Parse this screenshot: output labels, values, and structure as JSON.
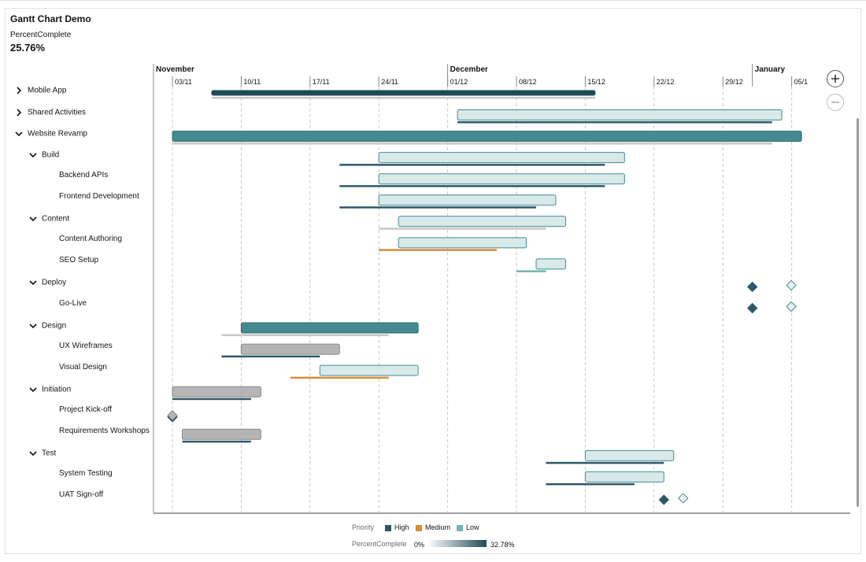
{
  "header": {
    "title": "Gantt Chart Demo",
    "kpi_label": "PercentComplete",
    "kpi_value": "25.76%"
  },
  "timeline": {
    "months": [
      "November",
      "December",
      "January"
    ],
    "weeks": [
      "03/11",
      "10/11",
      "17/11",
      "24/11",
      "01/12",
      "08/12",
      "15/12",
      "22/12",
      "29/12",
      "05/1"
    ]
  },
  "tree": [
    {
      "label": "Mobile App",
      "level": 0,
      "state": "collapsed"
    },
    {
      "label": "Shared Activities",
      "level": 0,
      "state": "collapsed"
    },
    {
      "label": "Website Revamp",
      "level": 0,
      "state": "expanded"
    },
    {
      "label": "Build",
      "level": 1,
      "state": "expanded"
    },
    {
      "label": "Backend APIs",
      "level": 2,
      "state": "leaf"
    },
    {
      "label": "Frontend Development",
      "level": 2,
      "state": "leaf"
    },
    {
      "label": "Content",
      "level": 1,
      "state": "expanded"
    },
    {
      "label": "Content Authoring",
      "level": 2,
      "state": "leaf"
    },
    {
      "label": "SEO Setup",
      "level": 2,
      "state": "leaf"
    },
    {
      "label": "Deploy",
      "level": 1,
      "state": "expanded"
    },
    {
      "label": "Go-Live",
      "level": 2,
      "state": "leaf"
    },
    {
      "label": "Design",
      "level": 1,
      "state": "expanded"
    },
    {
      "label": "UX Wireframes",
      "level": 2,
      "state": "leaf"
    },
    {
      "label": "Visual Design",
      "level": 2,
      "state": "leaf"
    },
    {
      "label": "Initiation",
      "level": 1,
      "state": "expanded"
    },
    {
      "label": "Project Kick-off",
      "level": 2,
      "state": "leaf"
    },
    {
      "label": "Requirements Workshops",
      "level": 2,
      "state": "leaf"
    },
    {
      "label": "Test",
      "level": 1,
      "state": "expanded"
    },
    {
      "label": "System Testing",
      "level": 2,
      "state": "leaf"
    },
    {
      "label": "UAT Sign-off",
      "level": 2,
      "state": "leaf"
    }
  ],
  "chart_data": {
    "type": "gantt",
    "x_axis": {
      "start": "2024-11-03",
      "tick_interval_days": 7,
      "tick_labels": [
        "03/11",
        "10/11",
        "17/11",
        "24/11",
        "01/12",
        "08/12",
        "15/12",
        "22/12",
        "29/12",
        "05/1"
      ]
    },
    "tasks": [
      {
        "name": "Mobile App",
        "kind": "summary",
        "start": "2024-11-07",
        "end": "2024-12-16",
        "baseline_start": "2024-11-07",
        "baseline_end": "2024-12-16",
        "baseline_priority": "none",
        "pct": 0.3278
      },
      {
        "name": "Shared Activities",
        "kind": "task",
        "start": "2024-12-02",
        "end": "2025-01-04",
        "baseline_start": "2024-12-02",
        "baseline_end": "2025-01-03",
        "baseline_priority": "High",
        "pct": 0.02
      },
      {
        "name": "Website Revamp",
        "kind": "summary",
        "start": "2024-11-03",
        "end": "2025-01-06",
        "baseline_start": "2024-11-03",
        "baseline_end": "2025-01-03",
        "baseline_priority": "none",
        "pct": 0.22
      },
      {
        "name": "Build",
        "kind": "task",
        "start": "2024-11-24",
        "end": "2024-12-19",
        "baseline_start": "2024-11-20",
        "baseline_end": "2024-12-17",
        "baseline_priority": "High",
        "pct": 0.02
      },
      {
        "name": "Backend APIs",
        "kind": "task",
        "start": "2024-11-24",
        "end": "2024-12-19",
        "baseline_start": "2024-11-20",
        "baseline_end": "2024-12-17",
        "baseline_priority": "High",
        "pct": 0.02
      },
      {
        "name": "Frontend Development",
        "kind": "task",
        "start": "2024-11-24",
        "end": "2024-12-12",
        "baseline_start": "2024-11-20",
        "baseline_end": "2024-12-10",
        "baseline_priority": "High",
        "pct": 0.02
      },
      {
        "name": "Content",
        "kind": "task",
        "start": "2024-11-26",
        "end": "2024-12-13",
        "baseline_start": "2024-11-24",
        "baseline_end": "2024-12-11",
        "baseline_priority": "none",
        "pct": 0.02
      },
      {
        "name": "Content Authoring",
        "kind": "task",
        "start": "2024-11-26",
        "end": "2024-12-09",
        "baseline_start": "2024-11-24",
        "baseline_end": "2024-12-06",
        "baseline_priority": "Medium",
        "pct": 0.02
      },
      {
        "name": "SEO Setup",
        "kind": "task",
        "start": "2024-12-10",
        "end": "2024-12-13",
        "baseline_start": "2024-12-08",
        "baseline_end": "2024-12-11",
        "baseline_priority": "Low",
        "pct": 0.02
      },
      {
        "name": "Deploy",
        "kind": "milestone",
        "date": "2025-01-04",
        "baseline_date": "2025-01-01",
        "baseline_priority": "High"
      },
      {
        "name": "Go-Live",
        "kind": "milestone",
        "date": "2025-01-04",
        "baseline_date": "2025-01-01",
        "baseline_priority": "High"
      },
      {
        "name": "Design",
        "kind": "summary",
        "start": "2024-11-10",
        "end": "2024-11-28",
        "baseline_start": "2024-11-08",
        "baseline_end": "2024-11-25",
        "baseline_priority": "none",
        "pct": 0.22
      },
      {
        "name": "UX Wireframes",
        "kind": "task",
        "start": "2024-11-10",
        "end": "2024-11-20",
        "baseline_start": "2024-11-08",
        "baseline_end": "2024-11-18",
        "baseline_priority": "High",
        "pct": 0.0
      },
      {
        "name": "Visual Design",
        "kind": "task",
        "start": "2024-11-18",
        "end": "2024-11-28",
        "baseline_start": "2024-11-15",
        "baseline_end": "2024-11-25",
        "baseline_priority": "Medium",
        "pct": 0.02
      },
      {
        "name": "Initiation",
        "kind": "task",
        "start": "2024-11-03",
        "end": "2024-11-12",
        "baseline_start": "2024-11-03",
        "baseline_end": "2024-11-11",
        "baseline_priority": "High",
        "pct": 0.0
      },
      {
        "name": "Project Kick-off",
        "kind": "milestone",
        "date": "2024-11-03",
        "baseline_date": "2024-11-03",
        "baseline_priority": "High"
      },
      {
        "name": "Requirements Workshops",
        "kind": "task",
        "start": "2024-11-04",
        "end": "2024-11-12",
        "baseline_start": "2024-11-04",
        "baseline_end": "2024-11-11",
        "baseline_priority": "High",
        "pct": 0.0
      },
      {
        "name": "Test",
        "kind": "task",
        "start": "2024-12-15",
        "end": "2024-12-24",
        "baseline_start": "2024-12-11",
        "baseline_end": "2024-12-23",
        "baseline_priority": "High",
        "pct": 0.02
      },
      {
        "name": "System Testing",
        "kind": "task",
        "start": "2024-12-15",
        "end": "2024-12-23",
        "baseline_start": "2024-12-11",
        "baseline_end": "2024-12-20",
        "baseline_priority": "High",
        "pct": 0.02
      },
      {
        "name": "UAT Sign-off",
        "kind": "milestone",
        "date": "2024-12-24",
        "baseline_date": "2024-12-23",
        "baseline_priority": "High"
      }
    ]
  },
  "legend": {
    "priority_title": "Priority",
    "priorities": [
      {
        "label": "High",
        "color": "#2d5967"
      },
      {
        "label": "Medium",
        "color": "#d98c3a"
      },
      {
        "label": "Low",
        "color": "#6fb5b1"
      }
    ],
    "percent_title": "PercentComplete",
    "percent_min": "0%",
    "percent_max": "32.78%",
    "gradient_from": "#ffffff",
    "gradient_to": "#1f4b57"
  },
  "colors": {
    "summary_bar": "#468a91",
    "bar_low": "#e4f3f4",
    "bar_high": "#1f4b57",
    "bar_zero": "#b5b5b5",
    "baseline_none": "#c8c8c8",
    "grid": "#c9c9c9",
    "axis": "#6f6c68"
  },
  "controls": {
    "zoom_in_icon": "plus-icon",
    "zoom_out_icon": "minus-icon"
  }
}
